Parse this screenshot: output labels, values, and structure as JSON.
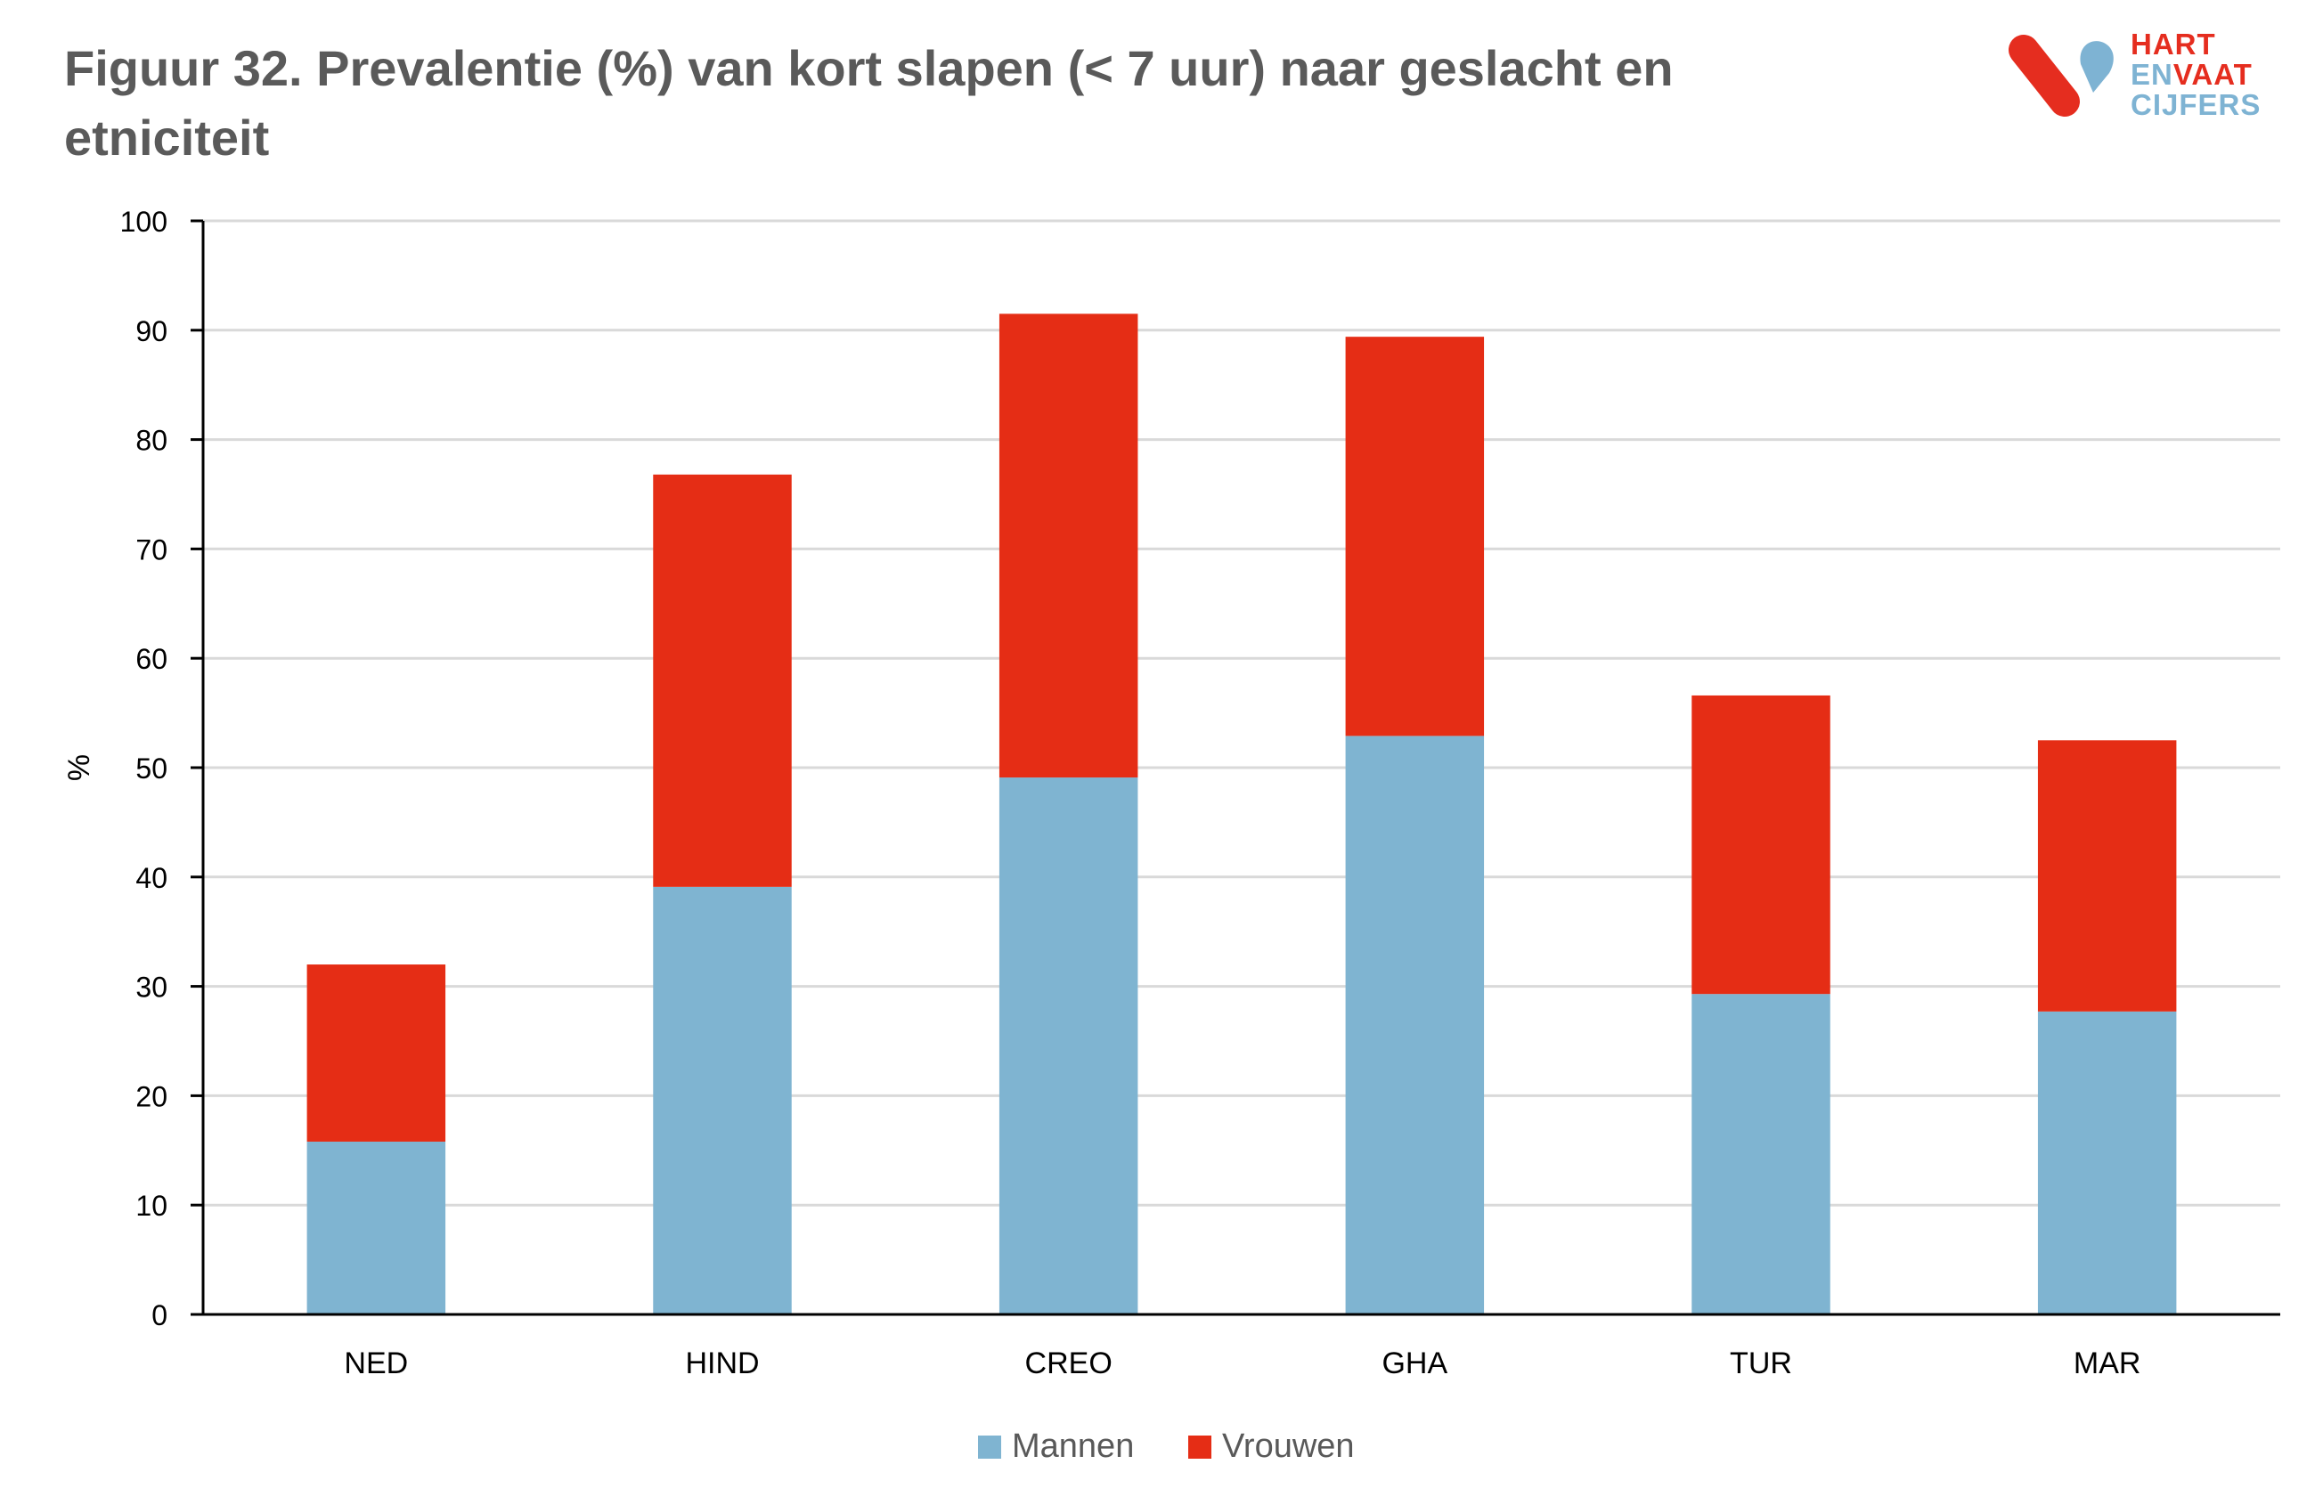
{
  "title": "Figuur 32. Prevalentie (%) van kort slapen (< 7 uur)  naar geslacht en etniciteit",
  "logo": {
    "line1": "HART",
    "line2a": "EN",
    "line2b": "VAAT",
    "line3": "CIJFERS",
    "colors": {
      "red": "#e52d1f",
      "blue": "#7eb3d3"
    }
  },
  "chart_data": {
    "type": "bar",
    "stacked": true,
    "categories": [
      "NED",
      "HIND",
      "CREO",
      "GHA",
      "TUR",
      "MAR"
    ],
    "series": [
      {
        "name": "Mannen",
        "color": "#7fb4d1",
        "values": [
          15.8,
          39.1,
          49.1,
          52.9,
          29.3,
          27.7
        ]
      },
      {
        "name": "Vrouwen",
        "color": "#e52d15",
        "values": [
          16.2,
          37.7,
          42.4,
          36.5,
          27.3,
          24.8
        ]
      }
    ],
    "ylabel": "%",
    "ylim": [
      0,
      100
    ],
    "yticks": [
      "0",
      "10",
      "20",
      "30",
      "40",
      "50",
      "60",
      "70",
      "80",
      "90",
      "100"
    ],
    "grid": true,
    "legend_position": "bottom"
  }
}
